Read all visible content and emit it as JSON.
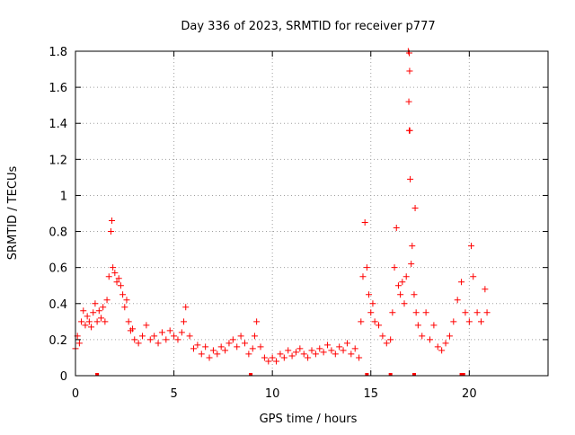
{
  "chart_data": {
    "type": "scatter",
    "title": "Day 336 of 2023, SRMTID for receiver p777",
    "xlabel": "GPS time / hours",
    "ylabel": "SRMTID / TECUs",
    "xlim": [
      0,
      24
    ],
    "ylim": [
      0,
      1.8
    ],
    "x_ticks": [
      0,
      5,
      10,
      15,
      20
    ],
    "x_tick_labels": [
      "0",
      "5",
      "10",
      "15",
      "20"
    ],
    "y_ticks": [
      0,
      0.2,
      0.4,
      0.6,
      0.8,
      1,
      1.2,
      1.4,
      1.6,
      1.8
    ],
    "y_tick_labels": [
      "0",
      "0.2",
      "0.4",
      "0.6",
      "0.8",
      "1",
      "1.2",
      "1.4",
      "1.6",
      "1.8"
    ],
    "grid": true,
    "marker": "+",
    "marker_color": "#ff0000",
    "series": [
      {
        "name": "SRMTID",
        "x": [
          0.0,
          0.1,
          0.2,
          0.3,
          0.4,
          0.5,
          0.6,
          0.7,
          0.8,
          0.9,
          1.0,
          1.1,
          1.2,
          1.3,
          1.4,
          1.5,
          1.6,
          1.7,
          1.8,
          1.85,
          1.9,
          2.0,
          2.1,
          2.2,
          2.3,
          2.4,
          2.5,
          2.6,
          2.7,
          2.8,
          2.9,
          3.0,
          3.2,
          3.4,
          3.6,
          3.8,
          4.0,
          4.2,
          4.4,
          4.6,
          4.8,
          5.0,
          5.2,
          5.4,
          5.5,
          5.6,
          5.8,
          6.0,
          6.2,
          6.4,
          6.6,
          6.8,
          7.0,
          7.2,
          7.4,
          7.6,
          7.8,
          8.0,
          8.2,
          8.4,
          8.6,
          8.8,
          9.0,
          9.1,
          9.2,
          9.4,
          9.6,
          9.8,
          10.0,
          10.2,
          10.4,
          10.6,
          10.8,
          11.0,
          11.2,
          11.4,
          11.6,
          11.8,
          12.0,
          12.2,
          12.4,
          12.6,
          12.8,
          13.0,
          13.2,
          13.4,
          13.6,
          13.8,
          14.0,
          14.2,
          14.4,
          14.5,
          14.6,
          14.7,
          14.8,
          14.9,
          15.0,
          15.1,
          15.2,
          15.4,
          15.6,
          15.8,
          16.0,
          16.1,
          16.2,
          16.3,
          16.4,
          16.5,
          16.6,
          16.7,
          16.8,
          16.9,
          16.95,
          17.0,
          17.05,
          17.1,
          17.2,
          17.3,
          17.4,
          17.6,
          17.8,
          18.0,
          18.2,
          18.4,
          18.6,
          18.8,
          19.0,
          19.2,
          19.4,
          19.6,
          19.8,
          20.0,
          20.1,
          20.2,
          20.4,
          20.6,
          20.8,
          20.9
        ],
        "y": [
          0.15,
          0.22,
          0.18,
          0.3,
          0.36,
          0.28,
          0.33,
          0.3,
          0.27,
          0.35,
          0.4,
          0.3,
          0.36,
          0.32,
          0.38,
          0.3,
          0.42,
          0.55,
          0.8,
          0.86,
          0.6,
          0.57,
          0.52,
          0.54,
          0.5,
          0.45,
          0.38,
          0.42,
          0.3,
          0.25,
          0.26,
          0.2,
          0.18,
          0.22,
          0.28,
          0.2,
          0.22,
          0.18,
          0.24,
          0.2,
          0.25,
          0.22,
          0.2,
          0.24,
          0.3,
          0.38,
          0.22,
          0.15,
          0.17,
          0.12,
          0.16,
          0.1,
          0.14,
          0.12,
          0.16,
          0.14,
          0.18,
          0.2,
          0.16,
          0.22,
          0.18,
          0.12,
          0.15,
          0.22,
          0.3,
          0.16,
          0.1,
          0.08,
          0.1,
          0.08,
          0.12,
          0.1,
          0.14,
          0.11,
          0.13,
          0.15,
          0.12,
          0.1,
          0.14,
          0.12,
          0.15,
          0.13,
          0.17,
          0.14,
          0.12,
          0.16,
          0.14,
          0.18,
          0.12,
          0.15,
          0.1,
          0.3,
          0.55,
          0.85,
          0.6,
          0.45,
          0.35,
          0.4,
          0.3,
          0.28,
          0.22,
          0.18,
          0.2,
          0.35,
          0.6,
          0.82,
          0.5,
          0.45,
          0.52,
          0.4,
          0.55,
          1.8,
          1.36,
          1.09,
          0.62,
          0.72,
          0.45,
          0.35,
          0.28,
          0.22,
          0.35,
          0.2,
          0.28,
          0.16,
          0.14,
          0.18,
          0.22,
          0.3,
          0.42,
          0.52,
          0.35,
          0.3,
          0.72,
          0.55,
          0.35,
          0.3,
          0.48,
          0.35
        ]
      }
    ],
    "outlier_points": {
      "x": [
        16.95,
        16.97,
        16.93,
        16.98,
        17.25
      ],
      "y": [
        1.79,
        1.69,
        1.52,
        1.36,
        0.93
      ]
    },
    "zero_markers_x": [
      1.1,
      8.9,
      14.8,
      16.0,
      17.2,
      19.6,
      19.7
    ]
  }
}
